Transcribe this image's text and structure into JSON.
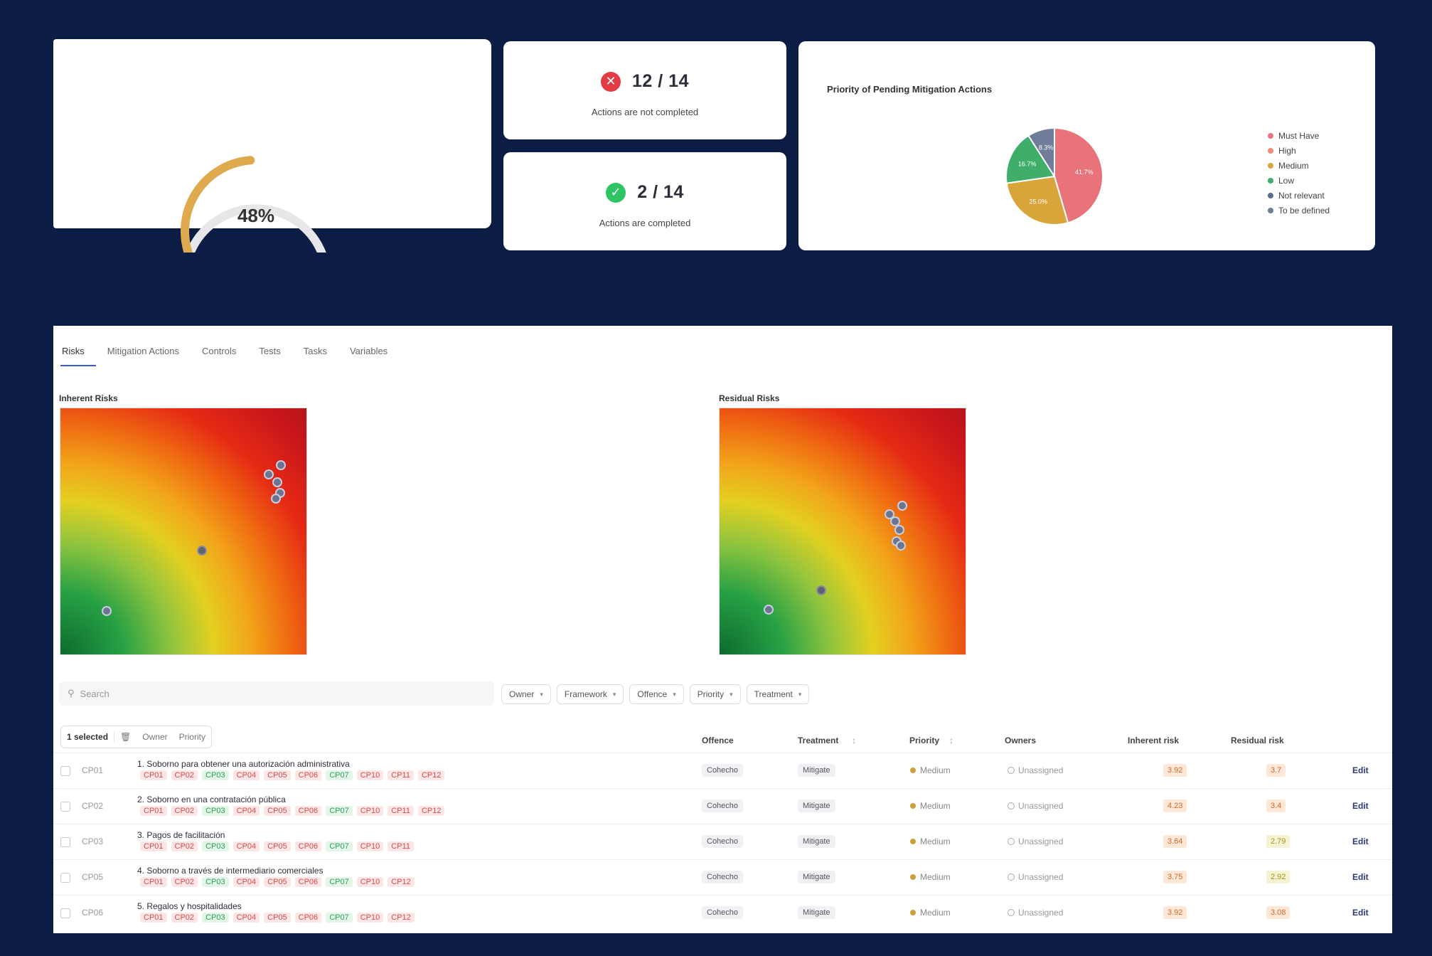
{
  "progress": {
    "percent_label": "48%",
    "fraction": 0.48,
    "track_color": "#e7e7ea",
    "fill_color": "#dfa94d"
  },
  "stats": {
    "not_completed": {
      "value": "12 / 14",
      "label": "Actions are not completed",
      "icon": "x-circle-icon",
      "color": "#e23b44"
    },
    "completed": {
      "value": "2 / 14",
      "label": "Actions are completed",
      "icon": "check-circle-icon",
      "color": "#2ec464"
    }
  },
  "chart_data": {
    "type": "pie",
    "title": "Priority of Pending Mitigation Actions",
    "slices": [
      {
        "name": "Must Have",
        "value": 41.7,
        "label": "41.7%",
        "color": "#e8737a"
      },
      {
        "name": "High",
        "value": 0,
        "label": "",
        "color": "#ef8d7a"
      },
      {
        "name": "Medium",
        "value": 25.0,
        "label": "25.0%",
        "color": "#d8a53a"
      },
      {
        "name": "Low",
        "value": 16.7,
        "label": "16.7%",
        "color": "#3fae6a"
      },
      {
        "name": "Not relevant",
        "value": 0,
        "label": "",
        "color": "#567087"
      },
      {
        "name": "To be defined",
        "value": 8.3,
        "label": "8.3%",
        "color": "#6f7d9a"
      }
    ],
    "legend_position": "right"
  },
  "tabs": [
    "Risks",
    "Mitigation Actions",
    "Controls",
    "Tests",
    "Tasks",
    "Variables"
  ],
  "matrices": {
    "inherent": {
      "title": "Inherent Risks"
    },
    "residual": {
      "title": "Residual Risks"
    }
  },
  "search": {
    "placeholder": "Search"
  },
  "filters": [
    "Owner",
    "Framework",
    "Offence",
    "Priority",
    "Treatment"
  ],
  "bulk": {
    "selected": "1 selected",
    "owner": "Owner",
    "priority": "Priority"
  },
  "table": {
    "headers": {
      "offence": "Offence",
      "treatment": "Treatment",
      "priority": "Priority",
      "owners": "Owners",
      "inherent": "Inherent risk",
      "residual": "Residual risk"
    },
    "rows": [
      {
        "code": "CP01",
        "title": "1. Soborno para obtener una autorización administrativa",
        "tags": [
          "CP01",
          "CP02",
          "CP03",
          "CP04",
          "CP05",
          "CP06",
          "CP07",
          "CP10",
          "CP11",
          "CP12"
        ],
        "offence": "Cohecho",
        "treatment": "Mitigate",
        "priority": "Medium",
        "owner": "Unassigned",
        "inherent": "3.92",
        "residual": "3.7",
        "residual_tone": "o",
        "edit": "Edit"
      },
      {
        "code": "CP02",
        "title": "2. Soborno en una contratación pública",
        "tags": [
          "CP01",
          "CP02",
          "CP03",
          "CP04",
          "CP05",
          "CP06",
          "CP07",
          "CP10",
          "CP11",
          "CP12"
        ],
        "offence": "Cohecho",
        "treatment": "Mitigate",
        "priority": "Medium",
        "owner": "Unassigned",
        "inherent": "4.23",
        "residual": "3.4",
        "residual_tone": "o",
        "edit": "Edit"
      },
      {
        "code": "CP03",
        "title": "3. Pagos de facilitación",
        "tags": [
          "CP01",
          "CP02",
          "CP03",
          "CP04",
          "CP05",
          "CP06",
          "CP07",
          "CP10",
          "CP11"
        ],
        "offence": "Cohecho",
        "treatment": "Mitigate",
        "priority": "Medium",
        "owner": "Unassigned",
        "inherent": "3.64",
        "residual": "2.79",
        "residual_tone": "y",
        "edit": "Edit"
      },
      {
        "code": "CP05",
        "title": "4. Soborno a través de intermediario comerciales",
        "tags": [
          "CP01",
          "CP02",
          "CP03",
          "CP04",
          "CP05",
          "CP06",
          "CP07",
          "CP10",
          "CP12"
        ],
        "offence": "Cohecho",
        "treatment": "Mitigate",
        "priority": "Medium",
        "owner": "Unassigned",
        "inherent": "3.75",
        "residual": "2.92",
        "residual_tone": "y",
        "edit": "Edit"
      },
      {
        "code": "CP06",
        "title": "5. Regalos y hospitalidades",
        "tags": [
          "CP01",
          "CP02",
          "CP03",
          "CP04",
          "CP05",
          "CP06",
          "CP07",
          "CP10",
          "CP12"
        ],
        "offence": "Cohecho",
        "treatment": "Mitigate",
        "priority": "Medium",
        "owner": "Unassigned",
        "inherent": "3.92",
        "residual": "3.08",
        "residual_tone": "o",
        "edit": "Edit"
      }
    ]
  }
}
